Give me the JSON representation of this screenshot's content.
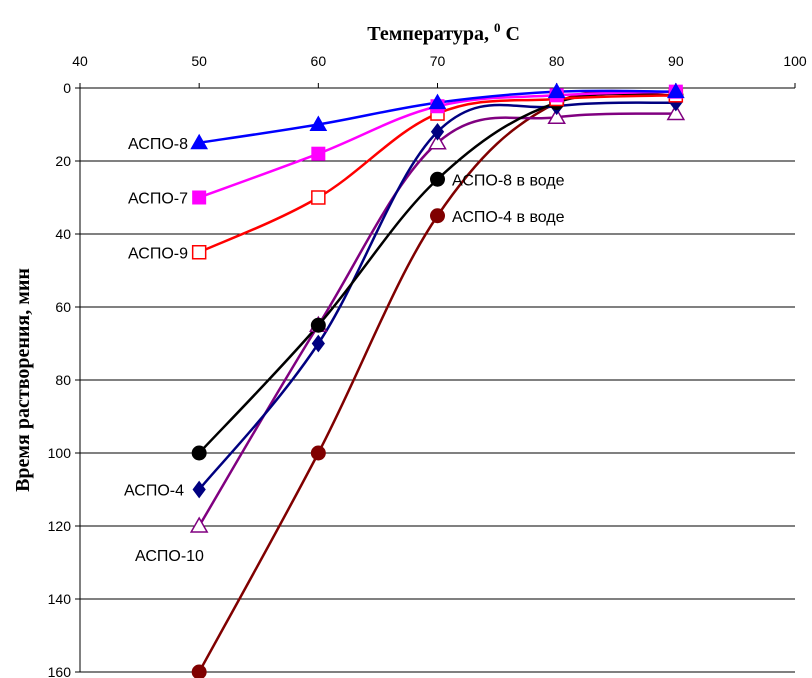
{
  "chart_data": {
    "type": "line",
    "title": "",
    "xlabel": {
      "text": "Температура, ",
      "sup": "0",
      "unit": "C"
    },
    "ylabel": "Время растворения, мин",
    "xlim": [
      40,
      100
    ],
    "ylim": [
      0,
      160
    ],
    "y_inverted": true,
    "x_axis_position": "top",
    "grid": "horizontal",
    "xticks": [
      40,
      50,
      60,
      70,
      80,
      90,
      100
    ],
    "yticks": [
      0,
      20,
      40,
      60,
      80,
      100,
      120,
      140,
      160
    ],
    "x": [
      50,
      60,
      70,
      80,
      90
    ],
    "series": [
      {
        "name": "АСПО-4 в воде",
        "color": "#800000",
        "marker": "circle",
        "filled": true,
        "values": [
          160,
          100,
          35,
          4,
          2
        ]
      },
      {
        "name": "АСПО-10",
        "color": "#800080",
        "marker": "triangle",
        "filled": false,
        "values": [
          120,
          65,
          15,
          8,
          7
        ]
      },
      {
        "name": "АСПО-4",
        "color": "#000080",
        "marker": "diamond",
        "filled": true,
        "values": [
          110,
          70,
          12,
          5,
          4
        ]
      },
      {
        "name": "АСПО-8 в воде",
        "color": "#000000",
        "marker": "circle",
        "filled": true,
        "values": [
          100,
          65,
          25,
          4,
          2
        ]
      },
      {
        "name": "АСПО-9",
        "color": "#ff0000",
        "marker": "square",
        "filled": false,
        "values": [
          45,
          30,
          7,
          3,
          2
        ]
      },
      {
        "name": "АСПО-7",
        "color": "#ff00ff",
        "marker": "square",
        "filled": true,
        "values": [
          30,
          18,
          5,
          2,
          1
        ]
      },
      {
        "name": "АСПО-8",
        "color": "#0000ff",
        "marker": "triangle",
        "filled": true,
        "values": [
          15,
          10,
          4,
          1,
          1
        ]
      }
    ]
  }
}
